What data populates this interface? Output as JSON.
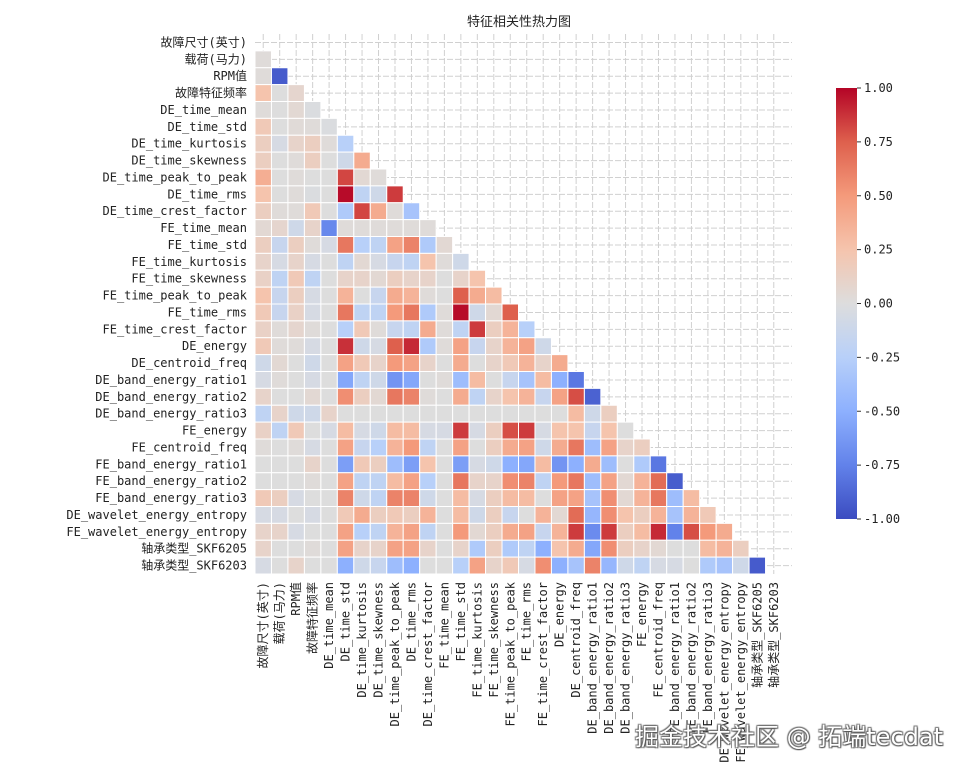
{
  "chart_data": {
    "type": "heatmap",
    "title": "特征相关性热力图",
    "xlabel": "",
    "ylabel": "",
    "colormap": "coolwarm",
    "vmin": -1.0,
    "vmax": 1.0,
    "mask": "upper-triangle-including-diagonal",
    "grid": true,
    "colorbar": {
      "placement": "right",
      "ticks": [
        "1.00",
        "0.75",
        "0.50",
        "0.25",
        "0.00",
        "-0.25",
        "-0.50",
        "-0.75",
        "-1.00"
      ],
      "tick_values": [
        1.0,
        0.75,
        0.5,
        0.25,
        0.0,
        -0.25,
        -0.5,
        -0.75,
        -1.0
      ]
    },
    "labels": [
      "故障尺寸(英寸)",
      "载荷(马力)",
      "RPM值",
      "故障特征频率",
      "DE_time_mean",
      "DE_time_std",
      "DE_time_kurtosis",
      "DE_time_skewness",
      "DE_time_peak_to_peak",
      "DE_time_rms",
      "DE_time_crest_factor",
      "FE_time_mean",
      "FE_time_std",
      "FE_time_kurtosis",
      "FE_time_skewness",
      "FE_time_peak_to_peak",
      "FE_time_rms",
      "FE_time_crest_factor",
      "DE_energy",
      "DE_centroid_freq",
      "DE_band_energy_ratio1",
      "DE_band_energy_ratio2",
      "DE_band_energy_ratio3",
      "FE_energy",
      "FE_centroid_freq",
      "FE_band_energy_ratio1",
      "FE_band_energy_ratio2",
      "FE_band_energy_ratio3",
      "DE_wavelet_energy_entropy",
      "FE_wavelet_energy_entropy",
      "轴承类型_SKF6205",
      "轴承类型_SKF6203"
    ],
    "lower_triangle_values": [
      [],
      [
        0.02
      ],
      [
        0.02,
        -0.93
      ],
      [
        0.25,
        0.0,
        0.08
      ],
      [
        0.02,
        0.0,
        0.05,
        -0.02
      ],
      [
        0.2,
        0.0,
        0.03,
        0.02,
        -0.02
      ],
      [
        0.15,
        -0.05,
        0.1,
        0.15,
        0.02,
        -0.25
      ],
      [
        0.15,
        0.0,
        0.02,
        0.15,
        0.0,
        -0.1,
        0.4
      ],
      [
        0.38,
        0.0,
        0.02,
        0.0,
        0.0,
        0.82,
        0.05,
        0.02
      ],
      [
        0.25,
        0.0,
        0.02,
        -0.02,
        0.0,
        0.98,
        -0.2,
        -0.1,
        0.85
      ],
      [
        0.15,
        0.02,
        0.02,
        0.2,
        0.0,
        -0.3,
        0.82,
        0.4,
        0.02,
        -0.35
      ],
      [
        0.05,
        0.08,
        -0.1,
        0.1,
        -0.72,
        0.02,
        0.02,
        0.02,
        0.02,
        0.02,
        0.02
      ],
      [
        0.15,
        -0.15,
        0.15,
        0.02,
        -0.05,
        0.65,
        -0.25,
        -0.2,
        0.45,
        0.6,
        -0.3,
        0.05
      ],
      [
        0.1,
        -0.05,
        0.1,
        -0.05,
        0.0,
        -0.2,
        0.05,
        -0.05,
        -0.15,
        -0.2,
        0.25,
        0.02,
        -0.1
      ],
      [
        0.12,
        -0.2,
        0.2,
        -0.2,
        0.0,
        0.1,
        0.1,
        0.05,
        0.15,
        0.1,
        0.1,
        0.0,
        0.1,
        0.25
      ],
      [
        0.25,
        -0.15,
        0.15,
        -0.05,
        0.0,
        0.35,
        0.0,
        -0.15,
        0.4,
        0.35,
        0.02,
        0.0,
        0.75,
        0.4,
        0.3
      ],
      [
        0.2,
        -0.15,
        0.12,
        -0.05,
        0.0,
        0.65,
        -0.2,
        -0.2,
        0.5,
        0.65,
        -0.3,
        0.02,
        0.98,
        -0.1,
        0.05,
        0.75
      ],
      [
        0.12,
        0.02,
        0.08,
        0.02,
        0.0,
        -0.25,
        0.2,
        0.02,
        -0.15,
        -0.2,
        0.4,
        0.02,
        -0.2,
        0.85,
        0.15,
        0.35,
        -0.25
      ],
      [
        0.2,
        0.02,
        0.02,
        -0.05,
        0.0,
        0.88,
        -0.1,
        -0.05,
        0.75,
        0.9,
        -0.3,
        0.02,
        0.45,
        -0.15,
        0.1,
        0.35,
        0.45,
        -0.1
      ],
      [
        -0.1,
        0.05,
        0.0,
        -0.1,
        0.0,
        0.45,
        0.2,
        0.1,
        0.5,
        0.45,
        0.1,
        0.0,
        0.4,
        0.0,
        0.1,
        0.2,
        0.35,
        0.1,
        0.4
      ],
      [
        -0.05,
        0.02,
        0.0,
        -0.05,
        0.0,
        -0.55,
        -0.2,
        -0.1,
        -0.65,
        -0.55,
        0.0,
        0.02,
        -0.4,
        0.3,
        0.0,
        -0.15,
        -0.35,
        0.3,
        -0.5,
        -0.8
      ],
      [
        0.1,
        0.0,
        0.0,
        0.05,
        0.0,
        0.55,
        0.15,
        0.05,
        0.65,
        0.6,
        0.02,
        0.0,
        0.4,
        -0.2,
        0.1,
        0.25,
        0.35,
        -0.15,
        0.45,
        0.8,
        -0.9
      ],
      [
        -0.2,
        0.1,
        -0.1,
        -0.1,
        0.1,
        0.0,
        0.0,
        0.0,
        0.0,
        0.0,
        0.0,
        0.0,
        0.0,
        0.0,
        0.0,
        0.0,
        0.0,
        0.0,
        0.0,
        0.3,
        -0.1,
        0.15
      ],
      [
        0.12,
        -0.2,
        0.2,
        0.0,
        -0.05,
        0.3,
        -0.05,
        -0.1,
        0.3,
        0.3,
        -0.05,
        -0.05,
        0.85,
        -0.05,
        0.15,
        0.8,
        0.85,
        -0.05,
        0.25,
        0.25,
        -0.15,
        0.25,
        0.0
      ],
      [
        0.02,
        0.0,
        0.02,
        -0.05,
        0.0,
        0.45,
        -0.15,
        -0.25,
        0.35,
        0.5,
        -0.2,
        0.0,
        0.45,
        0.0,
        0.15,
        0.4,
        0.45,
        -0.1,
        0.4,
        0.65,
        -0.4,
        0.45,
        0.1,
        0.15
      ],
      [
        0.0,
        0.0,
        0.0,
        0.1,
        0.0,
        -0.6,
        0.2,
        0.15,
        -0.4,
        -0.6,
        0.25,
        0.0,
        -0.6,
        -0.05,
        -0.1,
        -0.5,
        -0.55,
        0.3,
        -0.65,
        -0.5,
        0.4,
        -0.4,
        0.0,
        -0.3,
        -0.8
      ],
      [
        0.0,
        0.0,
        0.0,
        0.02,
        0.0,
        0.45,
        -0.2,
        -0.2,
        0.3,
        0.45,
        -0.25,
        0.0,
        0.65,
        0.1,
        0.1,
        0.55,
        0.6,
        -0.2,
        0.5,
        0.65,
        -0.4,
        0.45,
        0.05,
        0.35,
        0.7,
        -0.92
      ],
      [
        0.2,
        0.15,
        -0.05,
        0.0,
        0.0,
        0.6,
        -0.1,
        -0.2,
        0.6,
        0.6,
        -0.1,
        0.0,
        0.3,
        -0.05,
        0.15,
        0.3,
        0.3,
        0.0,
        0.45,
        0.45,
        -0.35,
        0.55,
        0.05,
        0.35,
        0.65,
        -0.4,
        0.3
      ],
      [
        -0.05,
        -0.05,
        0.0,
        -0.05,
        0.0,
        0.2,
        0.4,
        0.15,
        0.2,
        0.15,
        0.35,
        0.0,
        0.3,
        -0.1,
        0.15,
        -0.15,
        0.0,
        0.35,
        0.05,
        0.7,
        -0.45,
        0.55,
        0.25,
        0.15,
        0.35,
        -0.35,
        0.35,
        0.2
      ],
      [
        0.1,
        0.1,
        -0.05,
        0.0,
        0.0,
        0.45,
        -0.25,
        -0.2,
        0.35,
        0.45,
        -0.2,
        0.0,
        0.5,
        0.05,
        0.15,
        0.4,
        0.45,
        -0.15,
        0.35,
        0.85,
        -0.7,
        0.85,
        0.15,
        0.3,
        0.9,
        -0.75,
        0.8,
        0.5,
        0.4
      ],
      [
        0.1,
        0.0,
        0.0,
        0.02,
        0.0,
        0.45,
        0.1,
        0.1,
        0.45,
        0.45,
        0.1,
        0.0,
        0.1,
        -0.3,
        0.15,
        -0.3,
        -0.2,
        -0.5,
        0.25,
        0.4,
        -0.55,
        0.55,
        0.15,
        0.1,
        0.05,
        0.0,
        0.0,
        0.3,
        0.35,
        0.15
      ],
      [
        -0.05,
        0.0,
        0.1,
        0.0,
        0.0,
        -0.5,
        -0.1,
        -0.15,
        -0.4,
        -0.5,
        0.0,
        0.0,
        -0.25,
        0.45,
        0.1,
        0.2,
        -0.05,
        0.55,
        -0.5,
        -0.35,
        0.6,
        -0.45,
        -0.1,
        -0.2,
        -0.05,
        -0.05,
        0.0,
        -0.3,
        -0.35,
        -0.1,
        -0.93
      ]
    ]
  },
  "watermark": "掘金技术社区 @ 拓端tecdat"
}
